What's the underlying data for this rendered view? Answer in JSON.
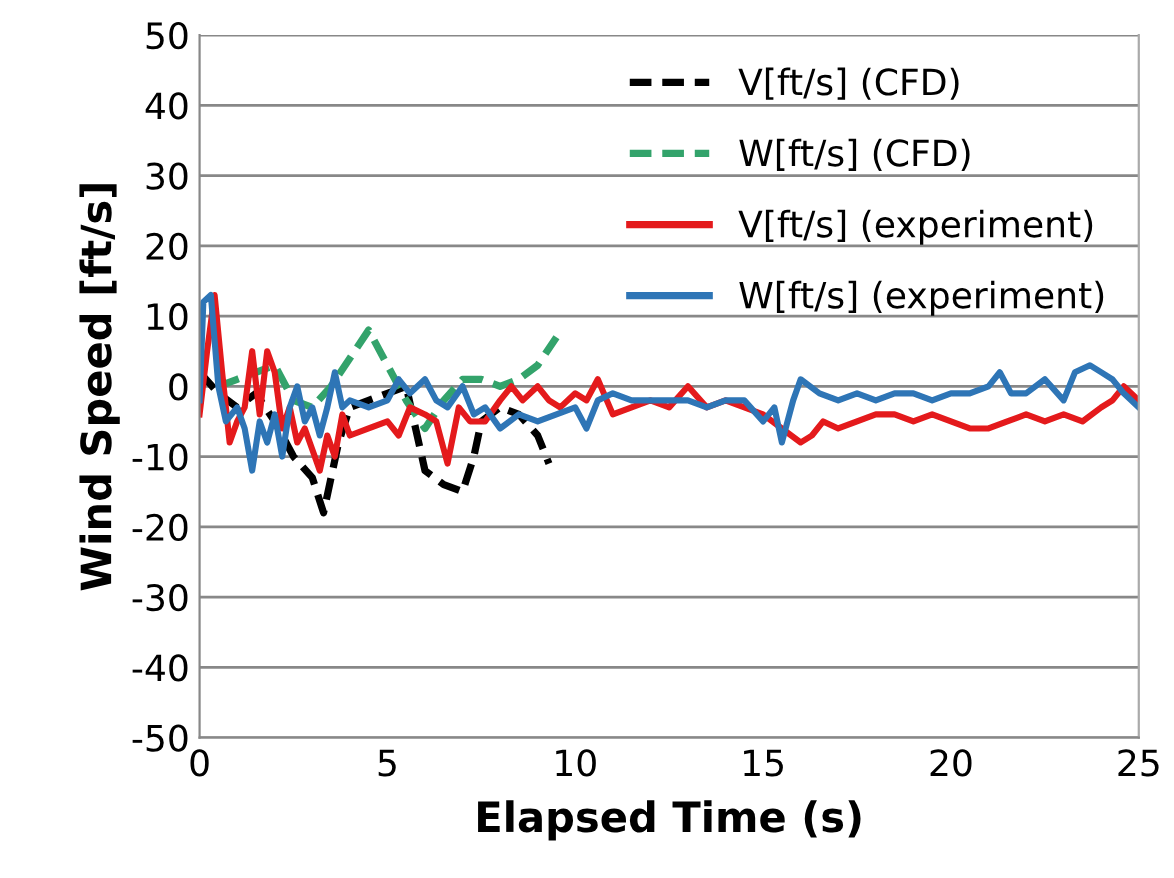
{
  "chart_data": {
    "type": "line",
    "xlabel": "Elapsed Time (s)",
    "ylabel": "Wind Speed [ft/s]",
    "xlim": [
      0,
      25
    ],
    "ylim": [
      -50,
      50
    ],
    "xticks": [
      0,
      5,
      10,
      15,
      20,
      25
    ],
    "yticks": [
      -50,
      -40,
      -30,
      -20,
      -10,
      0,
      10,
      20,
      30,
      40,
      50
    ],
    "grid": "y",
    "legend": "top right",
    "marker": "none",
    "series": [
      {
        "name": "V[ft/s] (CFD)",
        "color": "#000000",
        "line_style": "dashed",
        "x": [
          0,
          0.5,
          1,
          1.5,
          2,
          2.5,
          3,
          3.3,
          3.7,
          4,
          4.5,
          5,
          5.5,
          6,
          6.5,
          7,
          7.3,
          7.5,
          8,
          8.5,
          9,
          9.3
        ],
        "values": [
          2,
          -1,
          -3,
          -1,
          -5,
          -10,
          -13,
          -18,
          -8,
          -3,
          -2,
          -1,
          0,
          -12,
          -14,
          -15,
          -10,
          -5,
          -3,
          -4,
          -7,
          -11
        ]
      },
      {
        "name": "W[ft/s] (CFD)",
        "color": "#33a36b",
        "line_style": "dashed",
        "x": [
          0.5,
          1,
          1.5,
          2,
          2.5,
          3,
          3.5,
          4,
          4.5,
          5,
          5.5,
          6,
          6.5,
          7,
          7.5,
          8,
          8.5,
          9,
          9.5
        ],
        "values": [
          0,
          1,
          2,
          3,
          -2,
          -3,
          0,
          4,
          8,
          3,
          -2,
          -6,
          -2,
          1,
          1,
          0,
          1,
          3,
          7
        ]
      },
      {
        "name": "V[ft/s] (experiment)",
        "color": "#e41a1c",
        "line_style": "solid",
        "x": [
          0,
          0.2,
          0.4,
          0.6,
          0.8,
          1,
          1.2,
          1.4,
          1.6,
          1.8,
          2,
          2.2,
          2.4,
          2.6,
          2.8,
          3,
          3.2,
          3.4,
          3.6,
          3.8,
          4,
          4.5,
          5,
          5.3,
          5.6,
          6,
          6.3,
          6.6,
          6.9,
          7.2,
          7.6,
          8,
          8.3,
          8.6,
          9,
          9.3,
          9.6,
          10,
          10.3,
          10.6,
          11,
          11.5,
          12,
          12.5,
          13,
          13.5,
          14,
          14.5,
          15,
          15.5,
          16,
          16.3,
          16.6,
          17,
          17.5,
          18,
          18.5,
          19,
          19.5,
          20,
          20.5,
          21,
          21.5,
          22,
          22.5,
          23,
          23.5,
          24,
          24.3,
          24.6,
          25
        ],
        "values": [
          -4,
          5,
          13,
          2,
          -8,
          -5,
          -3,
          5,
          -4,
          5,
          2,
          -6,
          -3,
          -8,
          -6,
          -9,
          -12,
          -7,
          -10,
          -4,
          -7,
          -6,
          -5,
          -7,
          -3,
          -4,
          -5,
          -11,
          -3,
          -5,
          -5,
          -2,
          0,
          -2,
          0,
          -2,
          -3,
          -1,
          -2,
          1,
          -4,
          -3,
          -2,
          -3,
          0,
          -3,
          -2,
          -3,
          -4,
          -6,
          -8,
          -7,
          -5,
          -6,
          -5,
          -4,
          -4,
          -5,
          -4,
          -5,
          -6,
          -6,
          -5,
          -4,
          -5,
          -4,
          -5,
          -3,
          -2,
          0,
          -2
        ]
      },
      {
        "name": "W[ft/s] (experiment)",
        "color": "#2e75b6",
        "line_style": "solid",
        "x": [
          0,
          0.1,
          0.3,
          0.5,
          0.7,
          1,
          1.2,
          1.4,
          1.6,
          1.8,
          2,
          2.2,
          2.4,
          2.6,
          2.8,
          3,
          3.2,
          3.4,
          3.6,
          3.8,
          4,
          4.5,
          5,
          5.3,
          5.6,
          6,
          6.3,
          6.6,
          7,
          7.3,
          7.6,
          8,
          8.5,
          9,
          9.5,
          10,
          10.3,
          10.6,
          11,
          11.5,
          12,
          12.5,
          13,
          13.5,
          14,
          14.5,
          15,
          15.3,
          15.5,
          15.8,
          16,
          16.5,
          17,
          17.5,
          18,
          18.5,
          19,
          19.5,
          20,
          20.5,
          21,
          21.3,
          21.6,
          22,
          22.5,
          23,
          23.3,
          23.7,
          24,
          24.3,
          24.6,
          25
        ],
        "values": [
          -2,
          12,
          13,
          0,
          -5,
          -3,
          -6,
          -12,
          -5,
          -8,
          -4,
          -10,
          -3,
          0,
          -5,
          -3,
          -7,
          -3,
          2,
          -3,
          -2,
          -3,
          -2,
          1,
          -1,
          1,
          -2,
          -3,
          0,
          -4,
          -3,
          -6,
          -4,
          -5,
          -4,
          -3,
          -6,
          -2,
          -1,
          -2,
          -2,
          -2,
          -2,
          -3,
          -2,
          -2,
          -5,
          -3,
          -8,
          -2,
          1,
          -1,
          -2,
          -1,
          -2,
          -1,
          -1,
          -2,
          -1,
          -1,
          0,
          2,
          -1,
          -1,
          1,
          -2,
          2,
          3,
          2,
          1,
          -1,
          -3
        ]
      }
    ]
  }
}
